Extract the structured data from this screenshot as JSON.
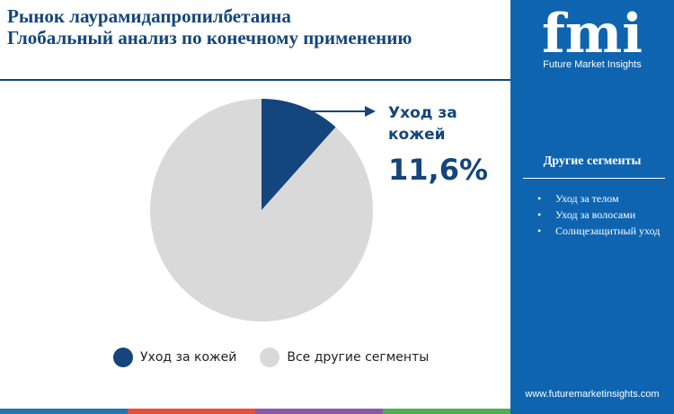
{
  "header": {
    "title_line1": "Рынок лаурамидапропилбетаина",
    "title_line2": "Глобальный анализ по конечному применению"
  },
  "chart_data": {
    "type": "pie",
    "slices": [
      {
        "label": "Уход за кожей",
        "value": 11.6,
        "color": "#14457d"
      },
      {
        "label": "Все другие сегменты",
        "value": 88.4,
        "color": "#d9d9d9"
      }
    ],
    "legend_placement": "bottom"
  },
  "callout": {
    "label_line1": "Уход за",
    "label_line2": "кожей",
    "value_text": "11,6%"
  },
  "legend": {
    "items": [
      {
        "label": "Уход за кожей",
        "color": "#14457d"
      },
      {
        "label": "Все другие сегменты",
        "color": "#d9d9d9"
      }
    ]
  },
  "sidebar": {
    "brand": "fmi",
    "caption": "Future Market Insights",
    "segments_title": "Другие сегменты",
    "segments": [
      "Уход за телом",
      "Уход за волосами",
      "Солнцезащитный уход"
    ],
    "url": "www.futuremarketinsights.com"
  },
  "colors": {
    "primary": "#14457d",
    "sidebar": "#0f64b0",
    "other": "#d9d9d9",
    "bottom_bar": [
      "#1f77b4",
      "#e74c3c",
      "#8a56a8",
      "#4caf50"
    ]
  }
}
